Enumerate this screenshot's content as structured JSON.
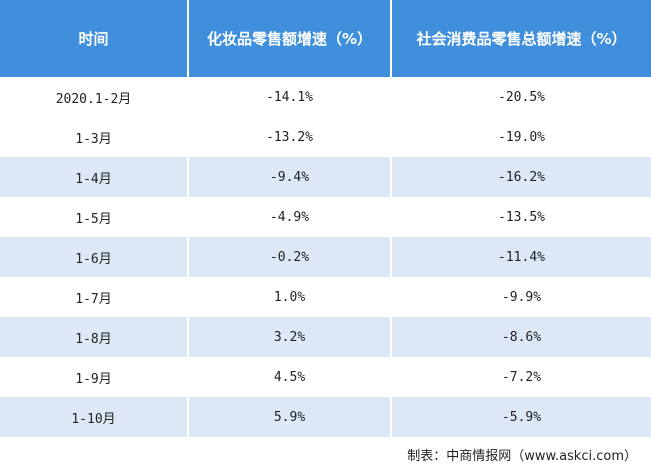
{
  "table": {
    "header": [
      "时间",
      "化妆品零售额增速（%）",
      "社会消费品零售总额增速（%）"
    ],
    "rows": [
      [
        "2020.1-2月",
        "-14.1%",
        "-20.5%"
      ],
      [
        "1-3月",
        "-13.2%",
        "-19.0%"
      ],
      [
        "1-4月",
        "-9.4%",
        "-16.2%"
      ],
      [
        "1-5月",
        "-4.9%",
        "-13.5%"
      ],
      [
        "1-6月",
        "-0.2%",
        "-11.4%"
      ],
      [
        "1-7月",
        "1.0%",
        "-9.9%"
      ],
      [
        "1-8月",
        "3.2%",
        "-8.6%"
      ],
      [
        "1-9月",
        "4.5%",
        "-7.2%"
      ],
      [
        "1-10月",
        "5.9%",
        "-5.9%"
      ]
    ]
  },
  "footer": "制表：中商情报网（www.askci.com）"
}
